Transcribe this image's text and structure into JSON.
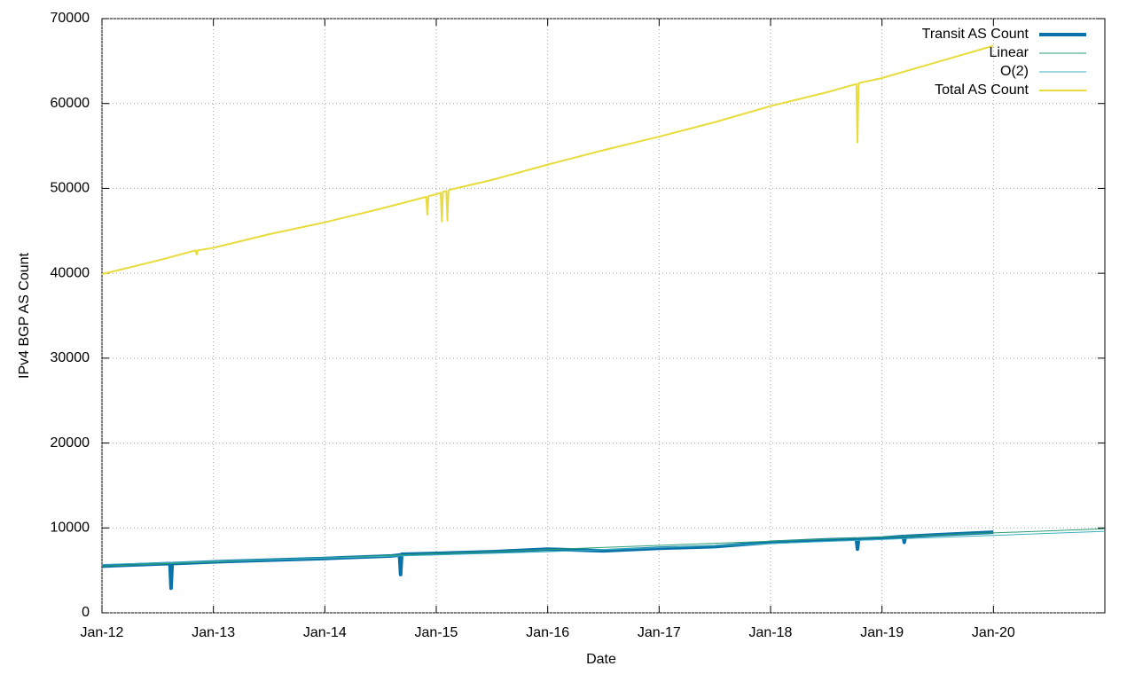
{
  "chart_data": {
    "type": "line",
    "xlabel": "Date",
    "ylabel": "IPv4 BGP AS Count",
    "xlim": [
      2012,
      2021
    ],
    "ylim": [
      0,
      70000
    ],
    "xticks": [
      {
        "value": 2012,
        "label": "Jan-12"
      },
      {
        "value": 2013,
        "label": "Jan-13"
      },
      {
        "value": 2014,
        "label": "Jan-14"
      },
      {
        "value": 2015,
        "label": "Jan-15"
      },
      {
        "value": 2016,
        "label": "Jan-16"
      },
      {
        "value": 2017,
        "label": "Jan-17"
      },
      {
        "value": 2018,
        "label": "Jan-18"
      },
      {
        "value": 2019,
        "label": "Jan-19"
      },
      {
        "value": 2020,
        "label": "Jan-20"
      }
    ],
    "yticks": [
      0,
      10000,
      20000,
      30000,
      40000,
      50000,
      60000,
      70000
    ],
    "grid": true,
    "legend": "top-right",
    "series": [
      {
        "name": "Transit AS Count",
        "color": "#0a72a8",
        "width": 4,
        "x": [
          2012,
          2012.6,
          2012.61,
          2012.62,
          2012.63,
          2013,
          2014,
          2014.6,
          2014.67,
          2014.68,
          2014.69,
          2015,
          2015.5,
          2016,
          2016.5,
          2017,
          2017.5,
          2018,
          2018.5,
          2018.77,
          2018.78,
          2018.79,
          2019,
          2019.19,
          2019.2,
          2019.21,
          2019.5,
          2020
        ],
        "values": [
          5500,
          5800,
          5800,
          2900,
          5800,
          6000,
          6400,
          6700,
          6800,
          4500,
          6900,
          7000,
          7200,
          7500,
          7300,
          7600,
          7800,
          8300,
          8600,
          8700,
          7500,
          8700,
          8800,
          9000,
          8300,
          9000,
          9200,
          9500
        ]
      },
      {
        "name": "Linear",
        "color": "#2a9d74",
        "width": 1,
        "x": [
          2012,
          2021
        ],
        "values": [
          5500,
          9900
        ]
      },
      {
        "name": "O(2)",
        "color": "#3ab0c0",
        "width": 1,
        "x": [
          2012,
          2016,
          2021
        ],
        "values": [
          5700,
          7200,
          9600
        ]
      },
      {
        "name": "Total AS Count",
        "color": "#e8dc3c",
        "width": 2,
        "x": [
          2012,
          2012.5,
          2012.84,
          2012.85,
          2012.86,
          2013,
          2013.5,
          2014,
          2014.5,
          2014.91,
          2014.92,
          2014.93,
          2015,
          2015.04,
          2015.05,
          2015.06,
          2015.09,
          2015.1,
          2015.11,
          2015.5,
          2016,
          2016.5,
          2017,
          2017.5,
          2018,
          2018.5,
          2018.77,
          2018.78,
          2018.79,
          2019,
          2019.5,
          2020
        ],
        "values": [
          39900,
          41500,
          42700,
          42200,
          42700,
          43000,
          44600,
          46000,
          47600,
          49000,
          46900,
          49100,
          49300,
          49500,
          46100,
          49600,
          49700,
          46200,
          49800,
          51000,
          52800,
          54500,
          56100,
          57800,
          59700,
          61300,
          62300,
          55400,
          62400,
          63000,
          64900,
          66800
        ]
      }
    ]
  }
}
